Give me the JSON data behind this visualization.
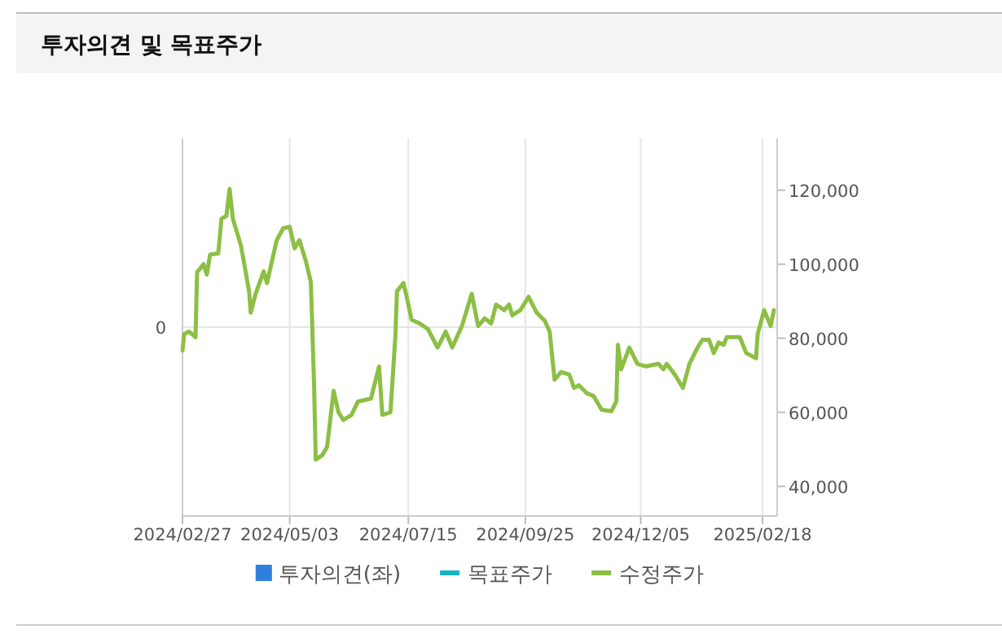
{
  "chart_data": {
    "type": "line",
    "title": "투자의견 및 목표주가",
    "xlim": [
      "2024-02-27",
      "2025-02-27"
    ],
    "xticks": [
      {
        "value": "2024-02-27",
        "label": "2024/02/27"
      },
      {
        "value": "2024-05-03",
        "label": "2024/05/03"
      },
      {
        "value": "2024-07-15",
        "label": "2024/07/15"
      },
      {
        "value": "2024-09-25",
        "label": "2024/09/25"
      },
      {
        "value": "2024-12-05",
        "label": "2024/12/05"
      },
      {
        "value": "2025-02-18",
        "label": "2025/02/18"
      }
    ],
    "annotations": [
      "0"
    ],
    "y2lim": [
      32000,
      134000
    ],
    "y2ticks": [
      {
        "value": 40000,
        "label": "40,000"
      },
      {
        "value": 60000,
        "label": "60,000"
      },
      {
        "value": 80000,
        "label": "80,000"
      },
      {
        "value": 100000,
        "label": "100,000"
      },
      {
        "value": 120000,
        "label": "120,000"
      }
    ],
    "grid": true,
    "legend": "bottom",
    "series": [
      {
        "name": "투자의견(좌)",
        "type": "bar",
        "axis": "y",
        "color": "#2f7fde"
      },
      {
        "name": "목표주가",
        "type": "line",
        "axis": "y2",
        "color": "#17b3c8"
      },
      {
        "name": "수정주가",
        "axis": "y2",
        "color": "#8cbf44",
        "x": [
          "2024-02-27",
          "2024-02-28",
          "2024-03-02",
          "2024-03-06",
          "2024-03-07",
          "2024-03-11",
          "2024-03-13",
          "2024-03-15",
          "2024-03-20",
          "2024-03-22",
          "2024-03-25",
          "2024-03-27",
          "2024-03-29",
          "2024-04-03",
          "2024-04-08",
          "2024-04-09",
          "2024-04-12",
          "2024-04-17",
          "2024-04-19",
          "2024-04-25",
          "2024-04-29",
          "2024-05-03",
          "2024-05-06",
          "2024-05-09",
          "2024-05-13",
          "2024-05-16",
          "2024-05-18",
          "2024-05-19",
          "2024-05-23",
          "2024-05-26",
          "2024-05-30",
          "2024-06-02",
          "2024-06-05",
          "2024-06-10",
          "2024-06-14",
          "2024-06-22",
          "2024-06-27",
          "2024-06-29",
          "2024-07-04",
          "2024-07-07",
          "2024-07-08",
          "2024-07-12",
          "2024-07-14",
          "2024-07-17",
          "2024-07-22",
          "2024-07-27",
          "2024-08-02",
          "2024-08-07",
          "2024-08-11",
          "2024-08-17",
          "2024-08-23",
          "2024-08-27",
          "2024-08-31",
          "2024-09-04",
          "2024-09-07",
          "2024-09-12",
          "2024-09-15",
          "2024-09-17",
          "2024-09-22",
          "2024-09-27",
          "2024-10-02",
          "2024-10-07",
          "2024-10-10",
          "2024-10-13",
          "2024-10-17",
          "2024-10-22",
          "2024-10-25",
          "2024-10-28",
          "2024-11-02",
          "2024-11-06",
          "2024-11-11",
          "2024-11-17",
          "2024-11-20",
          "2024-11-21",
          "2024-11-23",
          "2024-11-28",
          "2024-12-03",
          "2024-12-08",
          "2024-12-16",
          "2024-12-19",
          "2024-12-21",
          "2024-12-26",
          "2024-12-31",
          "2025-01-04",
          "2025-01-09",
          "2025-01-12",
          "2025-01-16",
          "2025-01-19",
          "2025-01-22",
          "2025-01-25",
          "2025-01-27",
          "2025-02-04",
          "2025-02-08",
          "2025-02-14",
          "2025-02-15",
          "2025-02-19",
          "2025-02-23",
          "2025-02-25"
        ],
        "values": [
          76700,
          81100,
          81800,
          80300,
          97800,
          100000,
          97200,
          102600,
          102900,
          112300,
          113000,
          120300,
          112300,
          105000,
          92700,
          86900,
          92000,
          98100,
          94900,
          106500,
          109700,
          110100,
          104300,
          106500,
          100700,
          95200,
          67300,
          47200,
          48400,
          50600,
          65800,
          60000,
          57900,
          59300,
          62900,
          63700,
          72400,
          59300,
          60000,
          80300,
          92700,
          94900,
          91200,
          85000,
          84000,
          82500,
          77500,
          81800,
          77500,
          83300,
          92000,
          83300,
          85400,
          84000,
          89100,
          87600,
          89100,
          86200,
          87600,
          91200,
          86900,
          84700,
          81800,
          68800,
          70900,
          70200,
          66600,
          67300,
          65100,
          64400,
          60700,
          60300,
          62900,
          78200,
          71600,
          77500,
          73100,
          72400,
          73100,
          71600,
          73100,
          70200,
          66600,
          73100,
          77500,
          79600,
          79600,
          76000,
          78900,
          78200,
          80300,
          80300,
          76000,
          74600,
          81100,
          87600,
          83300,
          87600
        ]
      }
    ]
  }
}
